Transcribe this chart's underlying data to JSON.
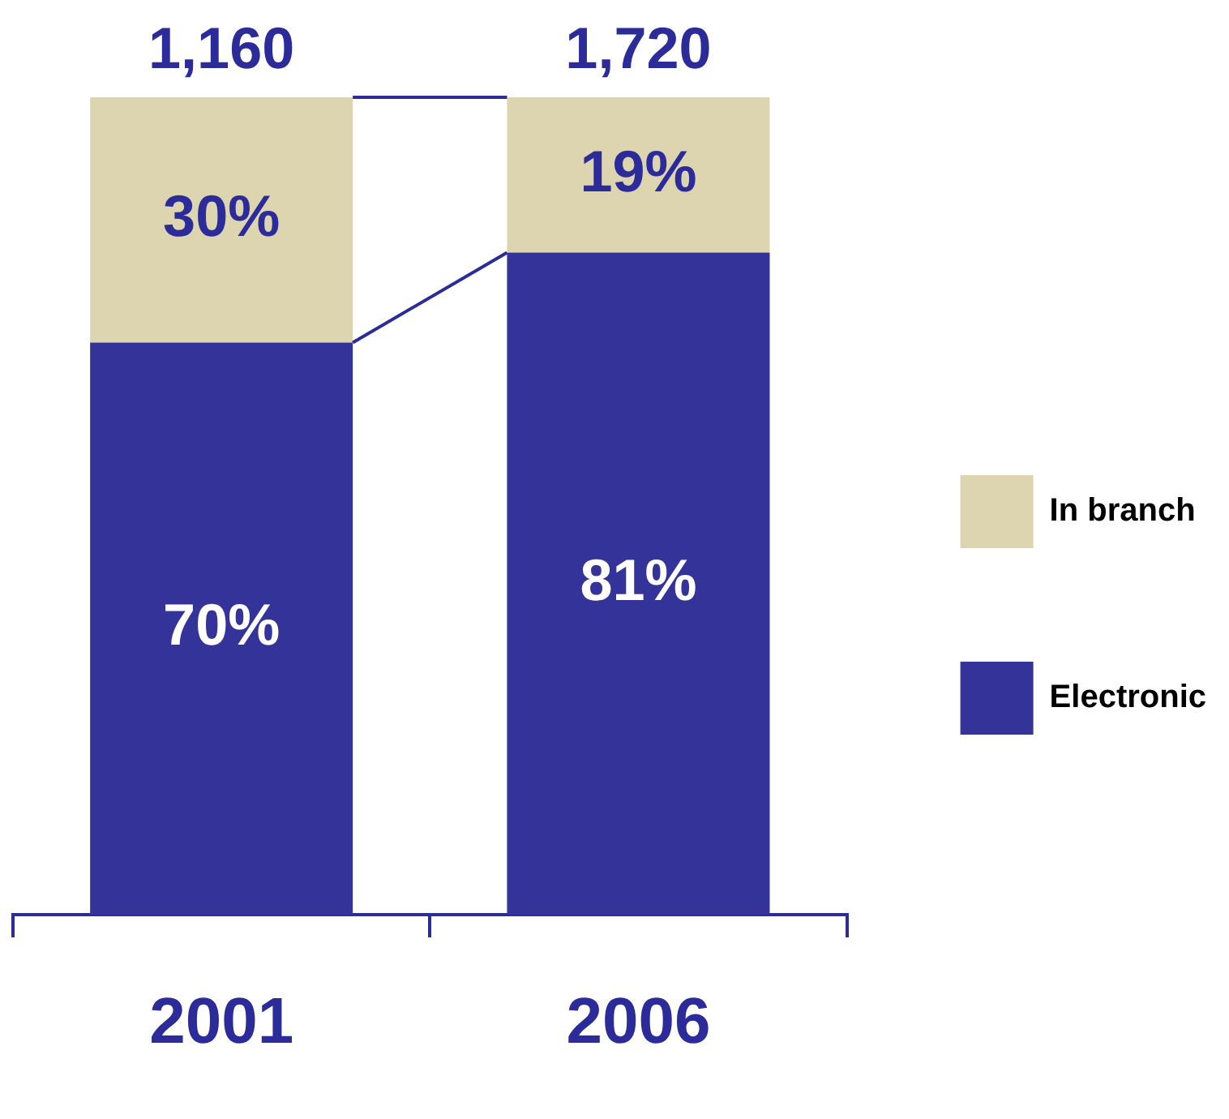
{
  "chart_data": {
    "type": "bar",
    "stacked": true,
    "categories": [
      "2001",
      "2006"
    ],
    "series": [
      {
        "name": "Electronic",
        "color": "#333399",
        "values": [
          70,
          81
        ],
        "value_labels": [
          "70%",
          "81%"
        ]
      },
      {
        "name": "In branch",
        "color": "#ddd4b0",
        "values": [
          30,
          19
        ],
        "value_labels": [
          "30%",
          "19%"
        ]
      }
    ],
    "annotations": [
      {
        "text": "1,160",
        "x": "2001",
        "y": 100
      },
      {
        "text": "1,720",
        "x": "2006",
        "y": 100
      }
    ],
    "legend": "right",
    "tick_labels": "x",
    "grid": false
  }
}
